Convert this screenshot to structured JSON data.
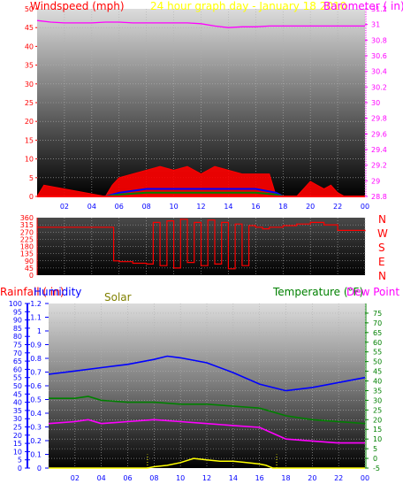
{
  "title_left": "Windspeed (mph)",
  "title_center": "24 hour graph day - January 18 2010",
  "title_right": "Barometer ( in)",
  "compass_letters": [
    "N",
    "W",
    "S",
    "E",
    "N"
  ],
  "label_rainfall": "Rainfall ( in)",
  "label_humidity": "Humidity",
  "label_solar": "Solar",
  "label_temperature": "Temperature (°F)",
  "label_dewpoint": "Dew Point (",
  "colors": {
    "wind": "#ff0000",
    "wind_gust": "#ff0000",
    "wind_avg": "#0000ff",
    "wind_low": "#008000",
    "barometer": "#ff00ff",
    "direction": "#ff0000",
    "humidity": "#0000ff",
    "temperature": "#008000",
    "dewpoint": "#ff00ff",
    "solar": "#ffff00",
    "rain_axis": "#0000ff"
  },
  "chart_data": [
    {
      "type": "line",
      "xlabel": "",
      "x_ticks": [
        "02",
        "04",
        "06",
        "08",
        "10",
        "12",
        "14",
        "16",
        "18",
        "20",
        "22",
        "00"
      ],
      "ylabel_left": "Windspeed (mph)",
      "ylim_left": [
        0,
        50
      ],
      "y_ticks_left": [
        0,
        5,
        10,
        15,
        20,
        25,
        30,
        35,
        40,
        45,
        50
      ],
      "ylabel_right": "Barometer ( in)",
      "ylim_right": [
        28.8,
        31.2
      ],
      "y_ticks_right": [
        28.8,
        29,
        29.2,
        29.4,
        29.6,
        29.8,
        30,
        30.2,
        30.4,
        30.6,
        30.8,
        31,
        31.2
      ],
      "series": [
        {
          "name": "Barometer",
          "axis": "right",
          "x": [
            0,
            1,
            2,
            3,
            4,
            5,
            6,
            7,
            8,
            9,
            10,
            11,
            12,
            13,
            14,
            15,
            16,
            17,
            18,
            19,
            20,
            21,
            22,
            23,
            24
          ],
          "y": [
            31.05,
            31.03,
            31.02,
            31.02,
            31.02,
            31.03,
            31.03,
            31.02,
            31.02,
            31.02,
            31.02,
            31.02,
            31.01,
            30.98,
            30.96,
            30.97,
            30.97,
            30.98,
            30.98,
            30.98,
            30.98,
            30.98,
            30.98,
            30.98,
            30.98
          ]
        },
        {
          "name": "Wind gust",
          "axis": "left",
          "x": [
            0,
            0.5,
            5,
            5.5,
            6,
            7,
            8,
            9,
            10,
            11,
            12,
            13,
            14,
            15,
            16,
            17,
            17.5,
            18,
            19,
            20,
            20.5,
            21,
            21.5,
            22,
            22.5,
            24
          ],
          "y": [
            0,
            3,
            0,
            3,
            5,
            6,
            7,
            8,
            7,
            8,
            6,
            8,
            7,
            6,
            6,
            6,
            0,
            0,
            0,
            4,
            3,
            2,
            3,
            1,
            0,
            0
          ]
        },
        {
          "name": "Wind average",
          "axis": "left",
          "x": [
            0,
            5,
            6,
            8,
            10,
            12,
            14,
            16,
            17.5,
            18,
            24
          ],
          "y": [
            0,
            0,
            1,
            2,
            2,
            2,
            2,
            2,
            1,
            0,
            0
          ]
        },
        {
          "name": "Wind low",
          "axis": "left",
          "x": [
            0,
            5,
            6,
            8,
            10,
            12,
            14,
            16,
            17.5,
            18,
            24
          ],
          "y": [
            0,
            0,
            0.5,
            1,
            1,
            1,
            1,
            1,
            0.5,
            0,
            0
          ]
        }
      ]
    },
    {
      "type": "line",
      "ylabel_left": "",
      "ylim_left": [
        0,
        360
      ],
      "y_ticks_left": [
        0,
        45,
        90,
        135,
        180,
        225,
        270,
        315,
        360
      ],
      "series": [
        {
          "name": "Wind direction",
          "x": [
            0,
            5.5,
            5.6,
            6,
            7,
            8,
            8.5,
            9,
            9.5,
            10,
            10.5,
            11,
            11.5,
            12,
            12.5,
            13,
            13.5,
            14,
            14.5,
            15,
            15.5,
            16,
            16.5,
            17,
            18,
            19,
            20,
            21,
            22,
            24
          ],
          "y": [
            300,
            300,
            90,
            85,
            75,
            70,
            330,
            60,
            340,
            45,
            350,
            80,
            330,
            60,
            345,
            70,
            330,
            40,
            320,
            60,
            310,
            300,
            290,
            300,
            310,
            320,
            330,
            315,
            280,
            275
          ]
        }
      ]
    },
    {
      "type": "line",
      "x_ticks": [
        "02",
        "04",
        "06",
        "08",
        "10",
        "12",
        "14",
        "16",
        "18",
        "20",
        "22",
        "00"
      ],
      "ylabel_left": "Rainfall ( in)",
      "ylim_left": [
        0,
        1.2
      ],
      "y_ticks_left": [
        0,
        0.1,
        0.2,
        0.3,
        0.4,
        0.5,
        0.6,
        0.7,
        0.8,
        0.9,
        1,
        1.1,
        1.2
      ],
      "ylabel_humidity": "Humidity",
      "ylim_humidity": [
        0,
        100
      ],
      "y_ticks_humidity": [
        0,
        5,
        10,
        15,
        20,
        25,
        30,
        35,
        40,
        45,
        50,
        55,
        60,
        65,
        70,
        75,
        80,
        85,
        90,
        95,
        100
      ],
      "ylabel_right": "Temperature (°F)",
      "ylim_right": [
        -5,
        80
      ],
      "y_ticks_right": [
        -5,
        0,
        5,
        10,
        15,
        20,
        25,
        30,
        35,
        40,
        45,
        50,
        55,
        60,
        65,
        70,
        75
      ],
      "series": [
        {
          "name": "Humidity",
          "axis": "humidity",
          "x": [
            0,
            2,
            4,
            6,
            8,
            9,
            10,
            12,
            14,
            16,
            18,
            20,
            22,
            24
          ],
          "y": [
            57,
            59,
            61,
            63,
            66,
            68,
            67,
            64,
            58,
            51,
            47,
            49,
            52,
            55
          ]
        },
        {
          "name": "Temperature",
          "axis": "right",
          "x": [
            0,
            2,
            3,
            4,
            6,
            8,
            10,
            12,
            14,
            16,
            18,
            20,
            22,
            24
          ],
          "y": [
            31,
            31,
            32,
            30,
            29,
            29,
            28,
            28,
            27,
            26,
            22,
            20,
            19,
            18
          ]
        },
        {
          "name": "Dew Point",
          "axis": "right",
          "x": [
            0,
            2,
            3,
            4,
            6,
            8,
            10,
            12,
            14,
            16,
            17,
            18,
            20,
            22,
            24
          ],
          "y": [
            18,
            19,
            20,
            18,
            19,
            20,
            19,
            18,
            17,
            16,
            13,
            10,
            9,
            8,
            8
          ]
        },
        {
          "name": "Solar",
          "axis": "rain",
          "x": [
            0,
            7.5,
            8,
            9,
            10,
            11,
            12,
            13,
            14,
            15,
            16,
            16.5,
            17,
            24
          ],
          "y": [
            0,
            0,
            0.01,
            0.02,
            0.04,
            0.07,
            0.06,
            0.05,
            0.05,
            0.04,
            0.03,
            0.02,
            0,
            0
          ]
        }
      ]
    }
  ]
}
